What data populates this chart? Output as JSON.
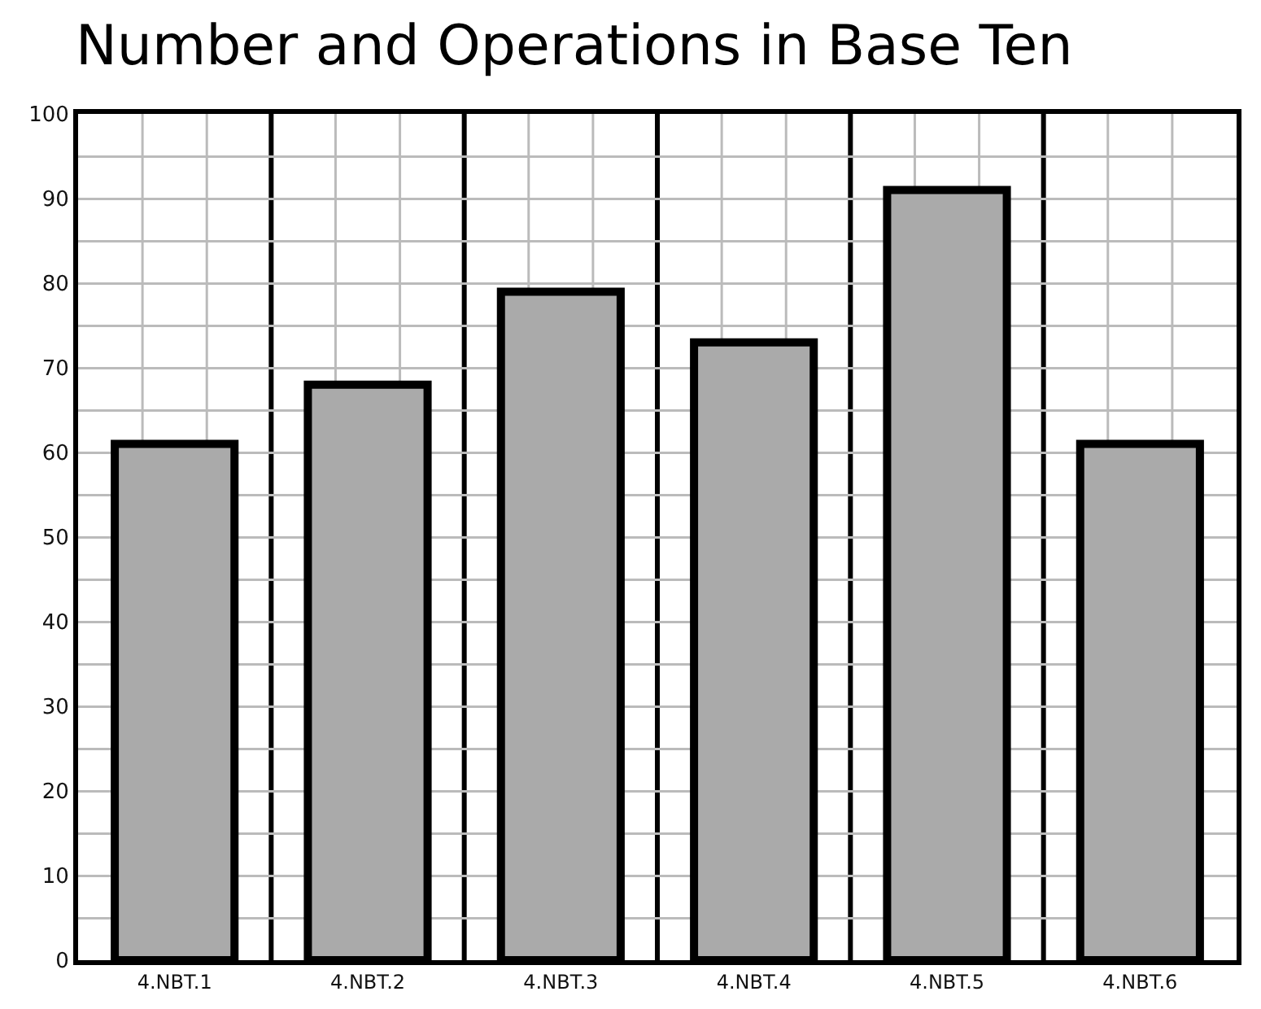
{
  "chart_data": {
    "type": "bar",
    "title": "Number and Operations in Base Ten",
    "categories": [
      "4.NBT.1",
      "4.NBT.2",
      "4.NBT.3",
      "4.NBT.4",
      "4.NBT.5",
      "4.NBT.6"
    ],
    "values": [
      61,
      68,
      79,
      73,
      91,
      61
    ],
    "color": "#aaaaaa",
    "ylim": [
      0,
      100
    ],
    "yticks": [
      0,
      10,
      20,
      30,
      40,
      50,
      60,
      70,
      80,
      90,
      100
    ],
    "grid": true
  }
}
